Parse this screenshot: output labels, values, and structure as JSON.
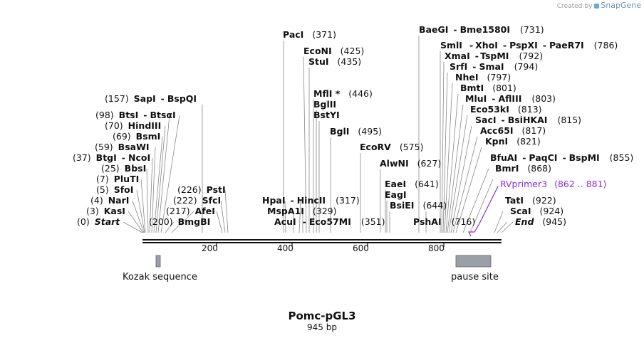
{
  "credit": {
    "prefix": "Created by",
    "brand": "SnapGene"
  },
  "map": {
    "name": "Pomc-pGL3",
    "length_label": "945 bp",
    "ruler_ticks": [
      "200",
      "400",
      "600",
      "800"
    ]
  },
  "features": [
    {
      "label": "Kozak sequence",
      "color": "#9aa0a6"
    },
    {
      "label": "pause site",
      "color": "#9aa0a6"
    }
  ],
  "primer": {
    "name": "RVprimer3",
    "range": "(862 .. 881)",
    "color": "#8a2be2"
  },
  "sites": [
    {
      "label": "Start",
      "pos": "(0)"
    },
    {
      "label": "KasI",
      "pos": "(3)"
    },
    {
      "label": "NarI",
      "pos": "(4)"
    },
    {
      "label": "SfoI",
      "pos": "(5)"
    },
    {
      "label": "PluTI",
      "pos": "(7)"
    },
    {
      "label": "BbsI",
      "pos": "(25)"
    },
    {
      "label": "BtgI",
      "sep": "-",
      "label2": "NcoI",
      "pos": "(37)"
    },
    {
      "label": "BsaWI",
      "pos": "(59)"
    },
    {
      "label": "BsmI",
      "pos": "(69)"
    },
    {
      "label": "HindIII",
      "pos": "(70)"
    },
    {
      "label": "BtsI",
      "sep": "-",
      "label2": "BtsαI",
      "pos": "(98)"
    },
    {
      "label": "SapI",
      "sep": "-",
      "label2": "BspQI",
      "pos": "(157)"
    },
    {
      "label": "BmgBI",
      "pos": "(200)"
    },
    {
      "label": "AfeI",
      "pos": "(217)"
    },
    {
      "label": "SfcI",
      "pos": "(222)"
    },
    {
      "label": "PstI",
      "pos": "(226)"
    },
    {
      "label": "PacI",
      "pos": "(371)"
    },
    {
      "label": "HpaI",
      "sep": "-",
      "label2": "HincII",
      "pos": "(317)"
    },
    {
      "label": "MspA1I",
      "pos": "(329)"
    },
    {
      "label": "AcuI",
      "sep": "-",
      "label2": "Eco57MI",
      "pos": "(351)"
    },
    {
      "label": "EcoNI",
      "pos": "(425)"
    },
    {
      "label": "StuI",
      "pos": "(435)"
    },
    {
      "label": "MflI *",
      "pos": "(446)"
    },
    {
      "label": "BglII"
    },
    {
      "label": "BstYI"
    },
    {
      "label": "BglI",
      "pos": "(495)"
    },
    {
      "label": "EcoRV",
      "pos": "(575)"
    },
    {
      "label": "AlwNI",
      "pos": "(627)"
    },
    {
      "label": "EaeI",
      "pos": "(641)"
    },
    {
      "label": "EagI"
    },
    {
      "label": "BsiEI",
      "pos": "(644)"
    },
    {
      "label": "PshAI",
      "pos": "(716)"
    },
    {
      "label": "BaeGI",
      "sep": "-",
      "label2": "Bme1580I",
      "pos": "(731)"
    },
    {
      "label": "SmlI",
      "sep": "-",
      "label2": "XhoI",
      "sep2": "-",
      "label3": "PspXI",
      "sep3": "-",
      "label4": "PaeR7I",
      "pos": "(786)"
    },
    {
      "label": "XmaI",
      "sep": "-",
      "label2": "TspMI",
      "pos": "(792)"
    },
    {
      "label": "SrfI",
      "sep": "-",
      "label2": "SmaI",
      "pos": "(794)"
    },
    {
      "label": "NheI",
      "pos": "(797)"
    },
    {
      "label": "BmtI",
      "pos": "(801)"
    },
    {
      "label": "MluI",
      "sep": "-",
      "label2": "AflIII",
      "pos": "(803)"
    },
    {
      "label": "Eco53kI",
      "pos": "(813)"
    },
    {
      "label": "SacI",
      "sep": "-",
      "label2": "BsiHKAI",
      "pos": "(815)"
    },
    {
      "label": "Acc65I",
      "pos": "(817)"
    },
    {
      "label": "KpnI",
      "pos": "(821)"
    },
    {
      "label": "BfuAI",
      "sep": "-",
      "label2": "PaqCI",
      "sep2": "-",
      "label3": "BspMI",
      "pos": "(855)"
    },
    {
      "label": "BmrI",
      "pos": "(868)"
    },
    {
      "label": "TatI",
      "pos": "(922)"
    },
    {
      "label": "ScaI",
      "pos": "(924)"
    },
    {
      "label": "End",
      "pos": "(945)"
    }
  ]
}
